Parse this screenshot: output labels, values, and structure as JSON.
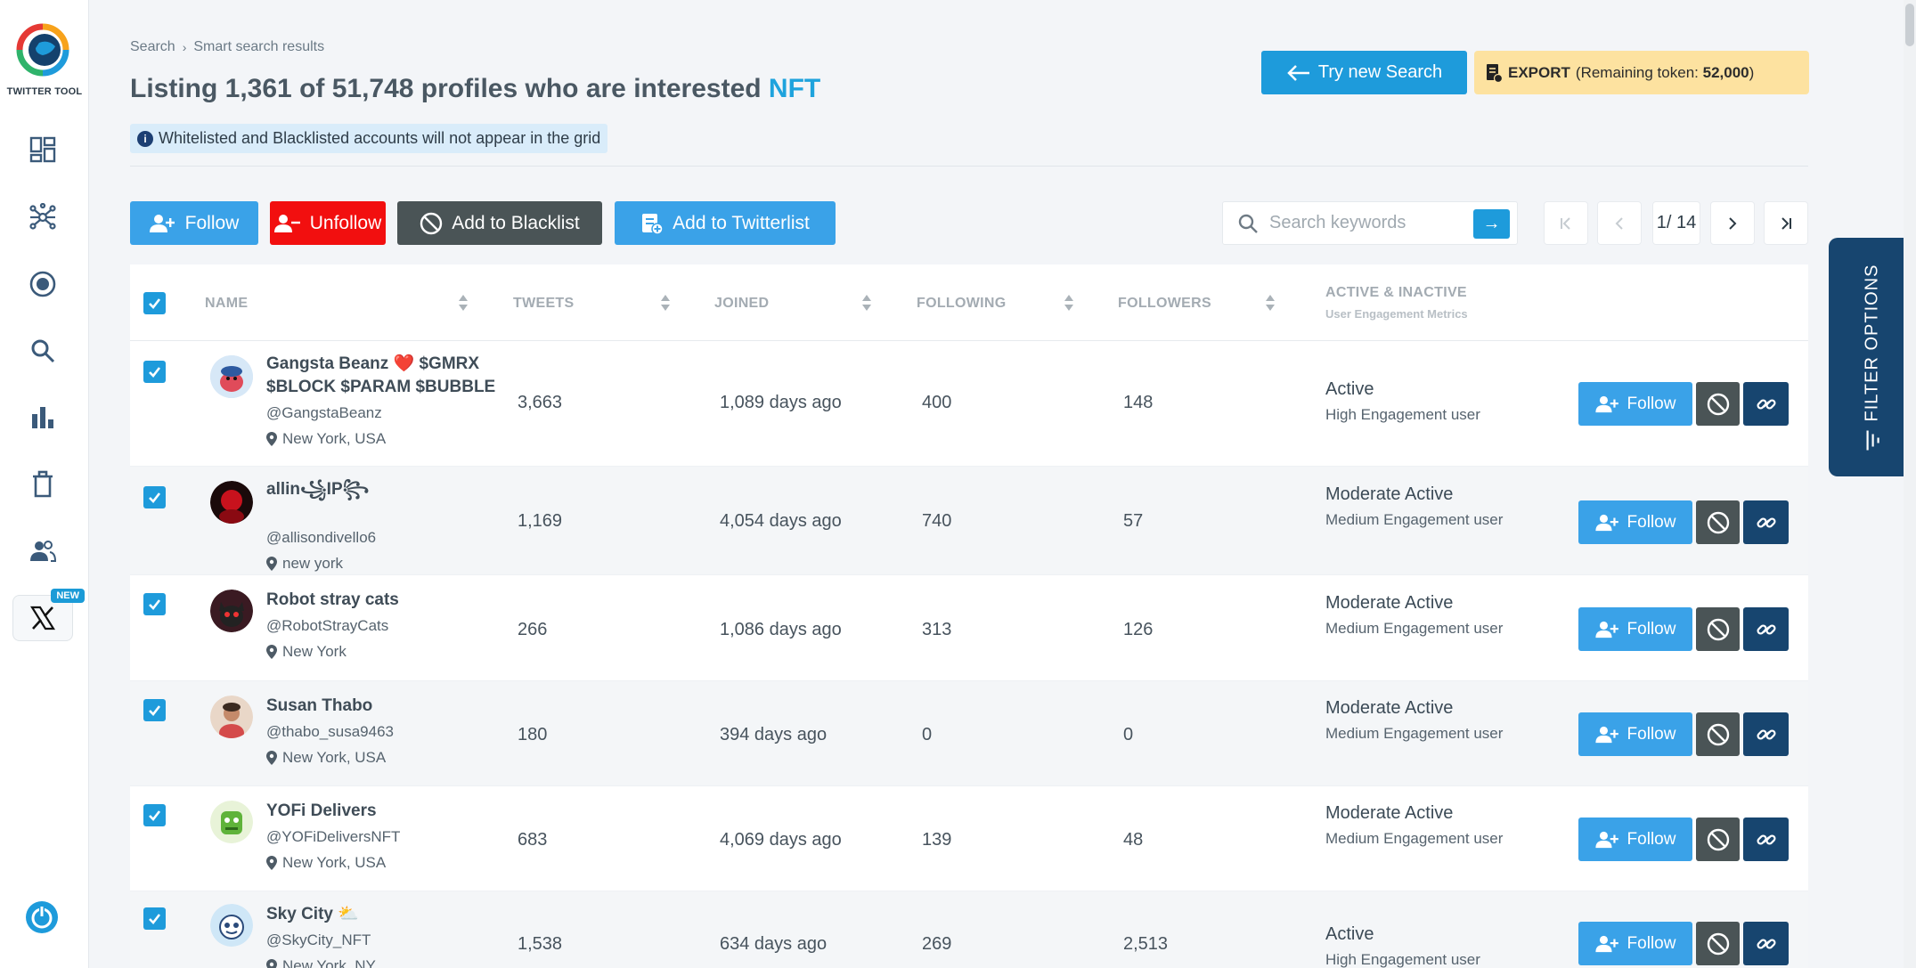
{
  "app": {
    "logo_text": "TWITTER TOOL",
    "new_badge": "NEW"
  },
  "breadcrumb": {
    "root": "Search",
    "current": "Smart search results"
  },
  "title": {
    "prefix": "Listing 1,361 of 51,748 profiles who are interested",
    "keyword": "NFT"
  },
  "notice": "Whitelisted and Blacklisted accounts will not appear in the grid",
  "header_actions": {
    "try_new_search": "Try new Search",
    "export_label": "EXPORT",
    "export_remaining_prefix": "(Remaining token:",
    "export_tokens": "52,000",
    "export_suffix": ")"
  },
  "toolbar": {
    "follow": "Follow",
    "unfollow": "Unfollow",
    "blacklist": "Add to Blacklist",
    "twitterlist": "Add to Twitterlist"
  },
  "search": {
    "placeholder": "Search keywords",
    "value": ""
  },
  "pagination": {
    "current": "1",
    "total": "14",
    "display": "1/ 14"
  },
  "filter_tab": "FILTER OPTIONS",
  "columns": {
    "name": "NAME",
    "tweets": "TWEETS",
    "joined": "JOINED",
    "following": "FOLLOWING",
    "followers": "FOLLOWERS",
    "activity": "ACTIVE & INACTIVE",
    "activity_sub": "User Engagement Metrics"
  },
  "row_action_label": "Follow",
  "rows": [
    {
      "name": "Gangsta Beanz ❤️ $GMRX $BLOCK $PARAM $BUBBLE",
      "handle": "@GangstaBeanz",
      "location": "New York, USA",
      "tweets": "3,663",
      "joined": "1,089 days ago",
      "following": "400",
      "followers": "148",
      "status": "Active",
      "engagement": "High Engagement user",
      "checked": true
    },
    {
      "name": "allin꧁IP꧂",
      "handle": "@allisondivello6",
      "location": "new york",
      "tweets": "1,169",
      "joined": "4,054 days ago",
      "following": "740",
      "followers": "57",
      "status": "Moderate Active",
      "engagement": "Medium Engagement user",
      "checked": true
    },
    {
      "name": "Robot stray cats",
      "handle": "@RobotStrayCats",
      "location": "New York",
      "tweets": "266",
      "joined": "1,086 days ago",
      "following": "313",
      "followers": "126",
      "status": "Moderate Active",
      "engagement": "Medium Engagement user",
      "checked": true
    },
    {
      "name": "Susan Thabo",
      "handle": "@thabo_susa9463",
      "location": "New York, USA",
      "tweets": "180",
      "joined": "394 days ago",
      "following": "0",
      "followers": "0",
      "status": "Moderate Active",
      "engagement": "Medium Engagement user",
      "checked": true
    },
    {
      "name": "YOFi Delivers",
      "handle": "@YOFiDeliversNFT",
      "location": "New York, USA",
      "tweets": "683",
      "joined": "4,069 days ago",
      "following": "139",
      "followers": "48",
      "status": "Moderate Active",
      "engagement": "Medium Engagement user",
      "checked": true
    },
    {
      "name": "Sky City ⛅",
      "handle": "@SkyCity_NFT",
      "location": "New York, NY",
      "tweets": "1,538",
      "joined": "634 days ago",
      "following": "269",
      "followers": "2,513",
      "status": "Active",
      "engagement": "High Engagement user",
      "checked": true
    }
  ],
  "colors": {
    "primary": "#1e9bdb",
    "follow": "#3aa2e8",
    "unfollow": "#f20f0f",
    "blacklist": "#4a5456",
    "navy": "#17456f",
    "export_bg": "#fde2a0"
  },
  "icons": {
    "sidebar": [
      "dashboard-icon",
      "network-icon",
      "target-icon",
      "search-icon",
      "bar-chart-icon",
      "trash-icon",
      "users-icon",
      "x-logo-icon",
      "power-icon"
    ]
  }
}
